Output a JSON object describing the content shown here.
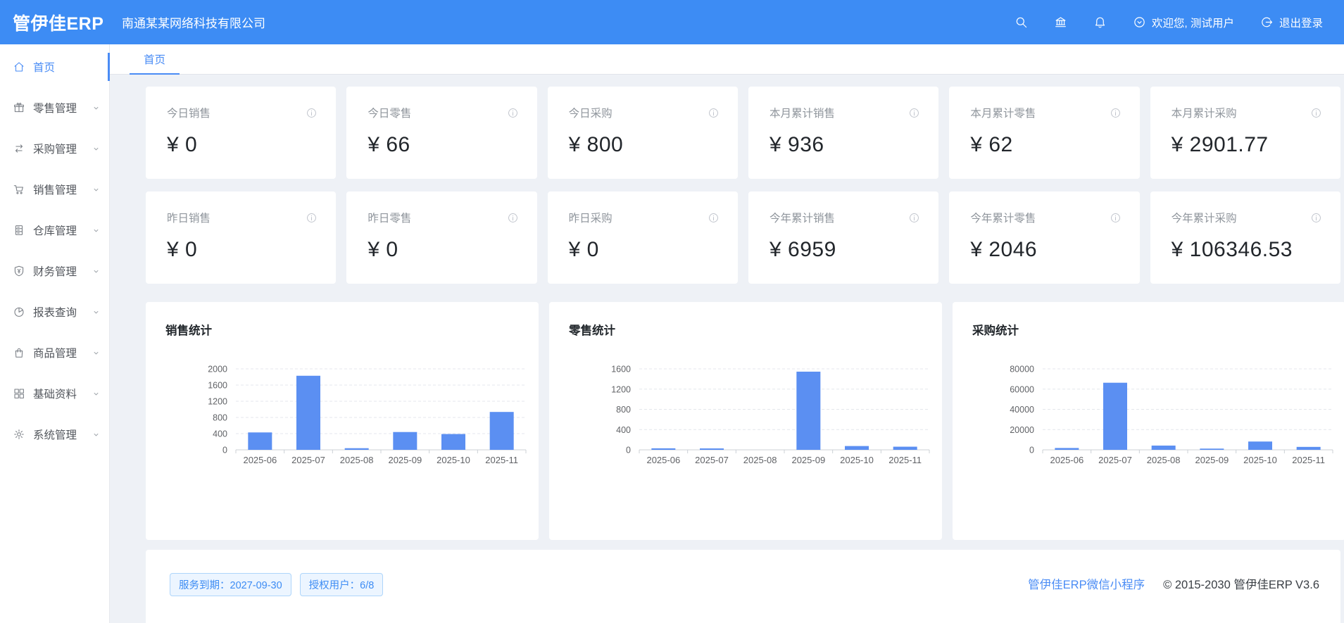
{
  "colors": {
    "primary": "#3d8cf4",
    "bar": "#5b8ff2",
    "badge_bg": "#ecf5ff",
    "page_bg": "#eef1f6"
  },
  "header": {
    "logo": "管伊佳ERP",
    "company": "南通某某网络科技有限公司",
    "welcome": "欢迎您, 测试用户",
    "logout_label": "退出登录",
    "icons": [
      "search-icon",
      "bank-icon",
      "bell-icon",
      "user-circle-icon",
      "logout-icon"
    ]
  },
  "sidebar": {
    "items": [
      {
        "label": "首页",
        "icon": "home-icon",
        "active": true,
        "has_children": false
      },
      {
        "label": "零售管理",
        "icon": "gift-icon",
        "active": false,
        "has_children": true
      },
      {
        "label": "采购管理",
        "icon": "swap-icon",
        "active": false,
        "has_children": true
      },
      {
        "label": "销售管理",
        "icon": "cart-icon",
        "active": false,
        "has_children": true
      },
      {
        "label": "仓库管理",
        "icon": "cabinet-icon",
        "active": false,
        "has_children": true
      },
      {
        "label": "财务管理",
        "icon": "shield-yen-icon",
        "active": false,
        "has_children": true
      },
      {
        "label": "报表查询",
        "icon": "pie-chart-icon",
        "active": false,
        "has_children": true
      },
      {
        "label": "商品管理",
        "icon": "bag-icon",
        "active": false,
        "has_children": true
      },
      {
        "label": "基础资料",
        "icon": "grid-icon",
        "active": false,
        "has_children": true
      },
      {
        "label": "系统管理",
        "icon": "gear-icon",
        "active": false,
        "has_children": true
      }
    ]
  },
  "tabs": [
    "首页"
  ],
  "stat_cards": [
    {
      "label": "今日销售",
      "value": "¥ 0"
    },
    {
      "label": "今日零售",
      "value": "¥ 66"
    },
    {
      "label": "今日采购",
      "value": "¥ 800"
    },
    {
      "label": "本月累计销售",
      "value": "¥ 936"
    },
    {
      "label": "本月累计零售",
      "value": "¥ 62"
    },
    {
      "label": "本月累计采购",
      "value": "¥ 2901.77"
    },
    {
      "label": "昨日销售",
      "value": "¥ 0"
    },
    {
      "label": "昨日零售",
      "value": "¥ 0"
    },
    {
      "label": "昨日采购",
      "value": "¥ 0"
    },
    {
      "label": "今年累计销售",
      "value": "¥ 6959"
    },
    {
      "label": "今年累计零售",
      "value": "¥ 2046"
    },
    {
      "label": "今年累计采购",
      "value": "¥ 106346.53"
    }
  ],
  "chart_data": [
    {
      "type": "bar",
      "title": "销售统计",
      "categories": [
        "2025-06",
        "2025-07",
        "2025-08",
        "2025-09",
        "2025-10",
        "2025-11"
      ],
      "values": [
        430,
        1830,
        40,
        440,
        390,
        936
      ],
      "yticks": [
        0,
        400,
        800,
        1200,
        1600,
        2000
      ],
      "ylim": [
        0,
        2000
      ],
      "xlabel": "",
      "ylabel": "",
      "grid": "dashed-horizontal",
      "legend": "none"
    },
    {
      "type": "bar",
      "title": "零售统计",
      "categories": [
        "2025-06",
        "2025-07",
        "2025-08",
        "2025-09",
        "2025-10",
        "2025-11"
      ],
      "values": [
        30,
        28,
        0,
        1545,
        75,
        62
      ],
      "yticks": [
        0,
        400,
        800,
        1200,
        1600
      ],
      "ylim": [
        0,
        1600
      ],
      "xlabel": "",
      "ylabel": "",
      "grid": "dashed-horizontal",
      "legend": "none"
    },
    {
      "type": "bar",
      "title": "采购统计",
      "categories": [
        "2025-06",
        "2025-07",
        "2025-08",
        "2025-09",
        "2025-10",
        "2025-11"
      ],
      "values": [
        1800,
        66300,
        4200,
        1200,
        8200,
        2902
      ],
      "yticks": [
        0,
        20000,
        40000,
        60000,
        80000
      ],
      "ylim": [
        0,
        80000
      ],
      "xlabel": "",
      "ylabel": "",
      "grid": "dashed-horizontal",
      "legend": "none"
    }
  ],
  "footer": {
    "badges": [
      "服务到期：2027-09-30",
      "授权用户：6/8"
    ],
    "link": "管伊佳ERP微信小程序",
    "copyright": "© 2015-2030 管伊佳ERP V3.6"
  }
}
